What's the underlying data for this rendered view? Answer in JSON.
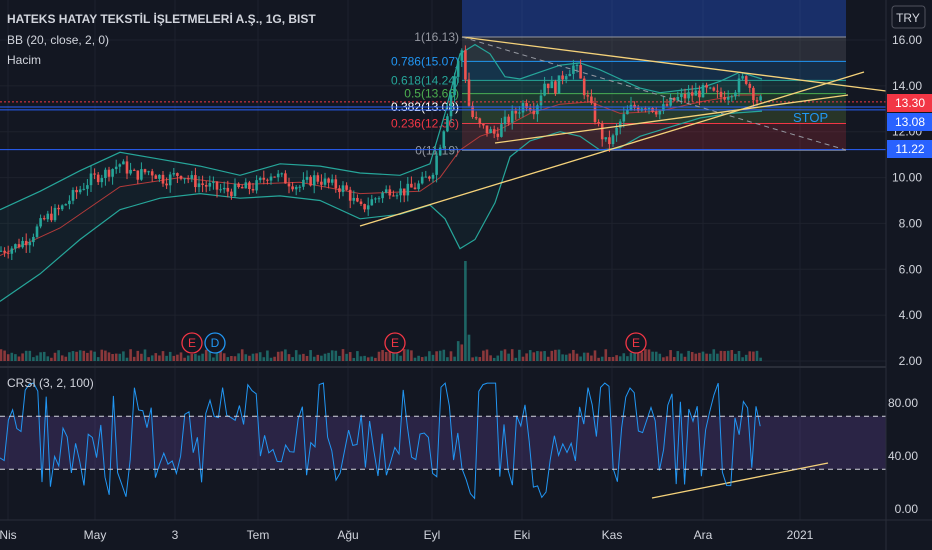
{
  "header": {
    "title": "HATEKS HATAY TEKSTİL İŞLETMELERİ A.Ş., 1G, BIST",
    "indicator_bb": "BB (20, close, 2, 0)",
    "indicator_volume": "Hacim",
    "currency": "TRY"
  },
  "chart_data": {
    "type": "candlestick",
    "price_axis": {
      "ticks": [
        "2.00",
        "4.00",
        "6.00",
        "8.00",
        "10.00",
        "12.00",
        "14.00",
        "16.00"
      ],
      "ylim": [
        2,
        17.5
      ]
    },
    "price_badges": [
      {
        "value": "13.30",
        "color": "#f23645"
      },
      {
        "value": "13.08",
        "color": "#2962ff"
      },
      {
        "value": "11.22",
        "color": "#2962ff"
      }
    ],
    "fib_levels": [
      {
        "label": "1(16.13)",
        "price": 16.13,
        "color": "#9598a1"
      },
      {
        "label": "0.786(15.07)",
        "price": 15.07,
        "color": "#2196f3"
      },
      {
        "label": "0.618(14.24)",
        "price": 14.24,
        "color": "#26a69a"
      },
      {
        "label": "0.5(13.66)",
        "price": 13.66,
        "color": "#4caf50"
      },
      {
        "label": "0.382(13.08)",
        "price": 13.08,
        "color": "#ffffff"
      },
      {
        "label": "0.236(12.36)",
        "price": 12.36,
        "color": "#f23645"
      },
      {
        "label": "0(11.19)",
        "price": 11.19,
        "color": "#9598a1"
      }
    ],
    "annotations": {
      "stop_label": "STOP",
      "earnings": [
        "E",
        "E",
        "E"
      ],
      "dividend": "D"
    },
    "x_ticks": [
      "Nis",
      "May",
      "3",
      "Tem",
      "Ağu",
      "Eyl",
      "Eki",
      "Kas",
      "Ara",
      "2021"
    ],
    "crsi": {
      "title": "CRSI (3, 2, 100)",
      "ticks": [
        "0.00",
        "40.00",
        "80.00"
      ],
      "ylim": [
        -5,
        100
      ],
      "upper_band": 70,
      "lower_band": 30
    },
    "series_shape": {
      "price_close": [
        [
          0,
          6.8
        ],
        [
          15,
          7.0
        ],
        [
          30,
          7.4
        ],
        [
          45,
          8.2
        ],
        [
          60,
          8.6
        ],
        [
          75,
          9.3
        ],
        [
          90,
          9.9
        ],
        [
          105,
          10.2
        ],
        [
          120,
          10.6
        ],
        [
          135,
          10.1
        ],
        [
          150,
          10.3
        ],
        [
          165,
          9.9
        ],
        [
          180,
          10.2
        ],
        [
          195,
          9.8
        ],
        [
          210,
          9.6
        ],
        [
          225,
          9.4
        ],
        [
          240,
          9.5
        ],
        [
          255,
          9.6
        ],
        [
          270,
          10.2
        ],
        [
          285,
          9.9
        ],
        [
          300,
          9.6
        ],
        [
          315,
          10.0
        ],
        [
          330,
          9.7
        ],
        [
          345,
          9.5
        ],
        [
          360,
          8.6
        ],
        [
          375,
          9.1
        ],
        [
          390,
          9.5
        ],
        [
          405,
          9.4
        ],
        [
          420,
          9.7
        ],
        [
          432,
          10.2
        ],
        [
          440,
          11.5
        ],
        [
          448,
          13.0
        ],
        [
          455,
          14.5
        ],
        [
          462,
          15.6
        ],
        [
          470,
          12.8
        ],
        [
          480,
          12.2
        ],
        [
          495,
          11.9
        ],
        [
          505,
          12.4
        ],
        [
          515,
          12.8
        ],
        [
          525,
          13.3
        ],
        [
          535,
          13.0
        ],
        [
          545,
          14.2
        ],
        [
          555,
          13.9
        ],
        [
          565,
          14.6
        ],
        [
          575,
          14.9
        ],
        [
          585,
          13.7
        ],
        [
          595,
          12.6
        ],
        [
          605,
          11.5
        ],
        [
          612,
          11.6
        ],
        [
          620,
          12.4
        ],
        [
          630,
          13.0
        ],
        [
          645,
          13.2
        ],
        [
          660,
          12.9
        ],
        [
          675,
          13.4
        ],
        [
          690,
          13.6
        ],
        [
          705,
          13.8
        ],
        [
          720,
          13.5
        ],
        [
          735,
          13.9
        ],
        [
          745,
          14.4
        ],
        [
          755,
          13.5
        ],
        [
          762,
          13.3
        ]
      ],
      "bb_upper": [
        [
          0,
          8.6
        ],
        [
          40,
          9.4
        ],
        [
          80,
          10.3
        ],
        [
          120,
          11.1
        ],
        [
          160,
          10.8
        ],
        [
          200,
          10.5
        ],
        [
          240,
          10.1
        ],
        [
          280,
          10.6
        ],
        [
          320,
          10.5
        ],
        [
          360,
          10.2
        ],
        [
          400,
          10.1
        ],
        [
          430,
          10.6
        ],
        [
          445,
          12.8
        ],
        [
          460,
          15.4
        ],
        [
          475,
          15.8
        ],
        [
          490,
          15.4
        ],
        [
          505,
          14.4
        ],
        [
          520,
          14.3
        ],
        [
          540,
          14.6
        ],
        [
          560,
          14.9
        ],
        [
          580,
          15.0
        ],
        [
          600,
          14.7
        ],
        [
          620,
          14.3
        ],
        [
          640,
          13.9
        ],
        [
          660,
          13.7
        ],
        [
          680,
          13.8
        ],
        [
          700,
          13.9
        ],
        [
          720,
          14.2
        ],
        [
          740,
          14.6
        ],
        [
          762,
          14.3
        ]
      ],
      "bb_lower": [
        [
          0,
          4.6
        ],
        [
          40,
          5.8
        ],
        [
          80,
          7.3
        ],
        [
          120,
          8.6
        ],
        [
          160,
          9.1
        ],
        [
          200,
          9.3
        ],
        [
          240,
          9.1
        ],
        [
          280,
          9.2
        ],
        [
          320,
          9.0
        ],
        [
          360,
          8.2
        ],
        [
          400,
          8.4
        ],
        [
          430,
          8.8
        ],
        [
          445,
          8.2
        ],
        [
          460,
          6.9
        ],
        [
          475,
          7.3
        ],
        [
          495,
          8.9
        ],
        [
          510,
          10.9
        ],
        [
          530,
          11.6
        ],
        [
          560,
          12.0
        ],
        [
          580,
          11.8
        ],
        [
          600,
          11.2
        ],
        [
          620,
          11.3
        ],
        [
          640,
          11.8
        ],
        [
          670,
          12.2
        ],
        [
          700,
          12.6
        ],
        [
          730,
          12.8
        ],
        [
          762,
          12.9
        ]
      ],
      "bb_basis": [
        [
          0,
          6.6
        ],
        [
          60,
          7.8
        ],
        [
          120,
          9.6
        ],
        [
          180,
          10.0
        ],
        [
          240,
          9.7
        ],
        [
          300,
          9.8
        ],
        [
          360,
          9.3
        ],
        [
          420,
          9.4
        ],
        [
          440,
          10.0
        ],
        [
          460,
          11.2
        ],
        [
          480,
          11.8
        ],
        [
          500,
          12.1
        ],
        [
          530,
          12.8
        ],
        [
          560,
          13.2
        ],
        [
          590,
          13.3
        ],
        [
          620,
          12.8
        ],
        [
          660,
          12.9
        ],
        [
          700,
          13.3
        ],
        [
          740,
          13.6
        ],
        [
          762,
          13.6
        ]
      ]
    }
  }
}
